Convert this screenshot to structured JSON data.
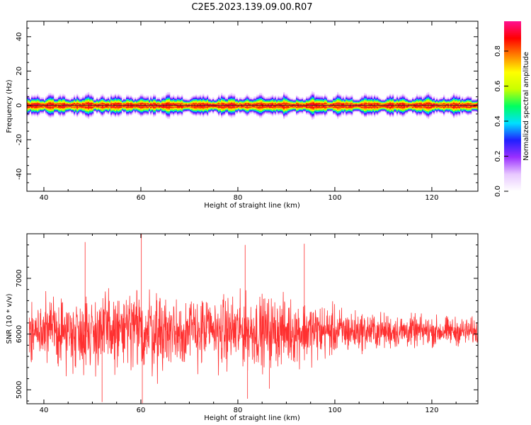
{
  "title": "C2E5.2023.139.09.00.R07",
  "colorbar": {
    "label": "Normalized spectral amplitude",
    "ticks": [
      "0.0",
      "0.2",
      "0.4",
      "0.6",
      "0.8"
    ],
    "tick_values": [
      0.0,
      0.2,
      0.4,
      0.6,
      0.8
    ],
    "range": [
      0,
      0.97
    ],
    "colormap": [
      "#ffffff",
      "#e8c8ff",
      "#9b30ff",
      "#2020ff",
      "#00e0ff",
      "#00ff60",
      "#c8ff00",
      "#ffff00",
      "#ff8000",
      "#ff0000",
      "#ff1090"
    ]
  },
  "chart_data": [
    {
      "type": "heatmap",
      "title": "C2E5.2023.139.09.00.R07",
      "xlabel": "Height of straight line (km)",
      "ylabel": "Frequency (Hz)",
      "xlim": [
        36.5,
        129.5
      ],
      "ylim": [
        -50,
        49
      ],
      "xticks": [
        40,
        60,
        80,
        100,
        120
      ],
      "yticks": [
        -40,
        -20,
        0,
        20,
        40
      ],
      "ytick_labels": [
        "-40",
        "-20",
        "0",
        "20",
        "40"
      ],
      "description_value": "energy concentrated near 0 Hz across all heights",
      "peak_frequency_hz": 0,
      "spread_hz": [
        -6,
        6
      ],
      "grid": false
    },
    {
      "type": "line",
      "xlabel": "Height of straight line (km)",
      "ylabel": "SNR (10 * v/v)",
      "xlim": [
        36.5,
        129.5
      ],
      "ylim": [
        4750,
        7800
      ],
      "xticks": [
        40,
        60,
        80,
        100,
        120
      ],
      "yticks": [
        5000,
        6000,
        7000
      ],
      "ytick_labels": [
        "5000",
        "6000",
        "7000"
      ],
      "series": [
        {
          "color": "#ff3030",
          "mean": 6050,
          "amplitude_by_height": [
            {
              "x": 37,
              "amp": 550
            },
            {
              "x": 45,
              "amp": 700
            },
            {
              "x": 55,
              "amp": 800
            },
            {
              "x": 60,
              "amp": 900
            },
            {
              "x": 70,
              "amp": 700
            },
            {
              "x": 85,
              "amp": 700
            },
            {
              "x": 95,
              "amp": 600
            },
            {
              "x": 105,
              "amp": 380
            },
            {
              "x": 115,
              "amp": 320
            },
            {
              "x": 129,
              "amp": 260
            }
          ],
          "spikes": [
            {
              "x": 48.5,
              "y": 7650
            },
            {
              "x": 52.0,
              "y": 4780
            },
            {
              "x": 60.1,
              "y": 7800
            },
            {
              "x": 60.3,
              "y": 4760
            },
            {
              "x": 81.5,
              "y": 7600
            },
            {
              "x": 82.0,
              "y": 4840
            },
            {
              "x": 93.7,
              "y": 7620
            },
            {
              "x": 86.5,
              "y": 5020
            }
          ]
        }
      ],
      "grid": false
    }
  ]
}
